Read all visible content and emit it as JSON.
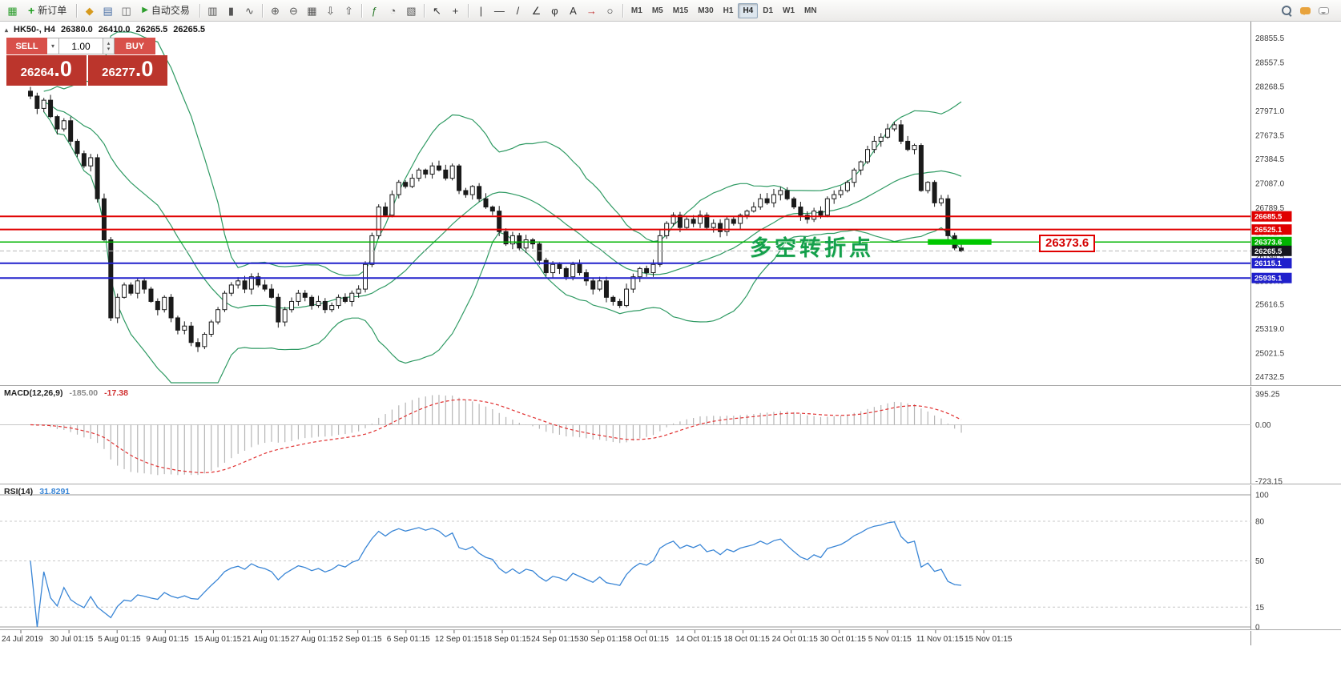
{
  "toolbar": {
    "app_icon": {
      "glyph": "▦"
    },
    "new_order": {
      "label": "新订单",
      "icon_glyph": "+"
    },
    "autotrade": {
      "label": "自动交易",
      "icon_glyph": "▶"
    },
    "icon_groups": [
      [
        {
          "name": "gold-icon",
          "glyph": "◆",
          "color": "#d69a1e"
        },
        {
          "name": "market-watch-icon",
          "glyph": "▤",
          "color": "#4a6fa5"
        },
        {
          "name": "data-window-icon",
          "glyph": "◫",
          "color": "#666666"
        }
      ],
      [
        {
          "name": "bar-chart-icon",
          "glyph": "▥",
          "color": "#555555"
        },
        {
          "name": "candlestick-chart-icon",
          "glyph": "▮",
          "color": "#555555"
        },
        {
          "name": "line-chart-icon",
          "glyph": "∿",
          "color": "#555555"
        }
      ],
      [
        {
          "name": "zoom-in-icon",
          "glyph": "⊕",
          "color": "#555555"
        },
        {
          "name": "zoom-out-icon",
          "glyph": "⊖",
          "color": "#555555"
        },
        {
          "name": "tile-windows-icon",
          "glyph": "▦",
          "color": "#555555"
        },
        {
          "name": "arrange-down-icon",
          "glyph": "⇩",
          "color": "#555555"
        },
        {
          "name": "arrange-up-icon",
          "glyph": "⇧",
          "color": "#555555"
        }
      ],
      [
        {
          "name": "indicators-icon",
          "glyph": "ƒ",
          "color": "#2c7a2c"
        },
        {
          "name": "periods-icon",
          "glyph": "◔",
          "color": "#555555"
        },
        {
          "name": "templates-icon",
          "glyph": "▧",
          "color": "#555555"
        }
      ],
      [
        {
          "name": "cursor-icon",
          "glyph": "↖",
          "color": "#333333"
        },
        {
          "name": "crosshair-icon",
          "glyph": "+",
          "color": "#333333"
        }
      ],
      [
        {
          "name": "vertical-line-icon",
          "glyph": "|",
          "color": "#333333"
        },
        {
          "name": "horizontal-line-icon",
          "glyph": "—",
          "color": "#333333"
        },
        {
          "name": "trendline-icon",
          "glyph": "/",
          "color": "#333333"
        },
        {
          "name": "channel-icon",
          "glyph": "∠",
          "color": "#333333"
        },
        {
          "name": "fibonacci-icon",
          "glyph": "φ",
          "color": "#333333"
        },
        {
          "name": "text-icon",
          "glyph": "A",
          "color": "#333333"
        },
        {
          "name": "arrows-icon",
          "glyph": "→",
          "color": "#c23030"
        },
        {
          "name": "shapes-icon",
          "glyph": "○",
          "color": "#333333"
        }
      ]
    ],
    "timeframes": [
      "M1",
      "M5",
      "M15",
      "M30",
      "H1",
      "H4",
      "D1",
      "W1",
      "MN"
    ],
    "active_timeframe": "H4"
  },
  "symbol_info": {
    "marker": "▴",
    "title": "HK50-, H4",
    "open": "26380.0",
    "high": "26410.0",
    "low": "26265.5",
    "close": "26265.5"
  },
  "trade_panel": {
    "sell_label": "SELL",
    "buy_label": "BUY",
    "volume": "1.00",
    "caret": "▾",
    "spin_up": "▴",
    "spin_down": "▾",
    "sell_price_main": "26264",
    "sell_price_frac": ".0",
    "buy_price_main": "26277",
    "buy_price_frac": ".0"
  },
  "annotation": {
    "text": "多空转折点",
    "color": "#14a04b"
  },
  "price_label_box": {
    "text": "26373.6",
    "color": "#e00000"
  },
  "chart_data": {
    "type": "candlestick",
    "symbol": "HK50",
    "timeframe": "H4",
    "price_pane": {
      "ylim": [
        24660,
        28930
      ],
      "axis_labels": [
        "28855.5",
        "28557.5",
        "28268.5",
        "27971.0",
        "27673.5",
        "27384.5",
        "27087.0",
        "26789.5",
        "26492.0",
        "26194.5",
        "25897.0",
        "25616.5",
        "25319.0",
        "25021.5",
        "24732.5"
      ],
      "hlines": [
        {
          "price": 26685.5,
          "label": "26685.5",
          "color": "#e00000",
          "width": 2
        },
        {
          "price": 26525.1,
          "label": "26525.1",
          "color": "#e00000",
          "width": 2
        },
        {
          "price": 26373.6,
          "label": "26373.6",
          "color": "#00b400",
          "width": 1.5
        },
        {
          "price": 26115.1,
          "label": "26115.1",
          "color": "#2020cc",
          "width": 2
        },
        {
          "price": 25935.1,
          "label": "25935.1",
          "color": "#2020cc",
          "width": 2
        }
      ],
      "current_price": {
        "price": 26265.5,
        "label": "26265.5",
        "tag_color": "#16161f",
        "line_color": "#b8b8b8"
      },
      "highlight_segment": {
        "price": 26373.6,
        "from_bar": 134,
        "to_bar": 143.5,
        "color": "#00c800",
        "thickness": 7
      },
      "style": {
        "bull": "#ffffff",
        "bear": "#1a1a1a",
        "wick": "#1a1a1a",
        "bollinger": "#2f9a63",
        "bg": "#ffffff"
      },
      "bollinger": {
        "period": 20,
        "deviation": 2
      },
      "closes": [
        28150,
        28000,
        28100,
        27900,
        27750,
        27850,
        27600,
        27450,
        27300,
        27400,
        26900,
        26400,
        25450,
        25700,
        25850,
        25750,
        25900,
        25800,
        25650,
        25550,
        25700,
        25450,
        25300,
        25350,
        25150,
        25100,
        25250,
        25400,
        25550,
        25750,
        25850,
        25900,
        25800,
        25950,
        25850,
        25800,
        25700,
        25400,
        25550,
        25650,
        25750,
        25700,
        25600,
        25650,
        25550,
        25600,
        25700,
        25650,
        25750,
        25800,
        26100,
        26450,
        26800,
        26700,
        26950,
        27100,
        27050,
        27150,
        27250,
        27200,
        27300,
        27250,
        27150,
        27300,
        27000,
        26950,
        27050,
        26900,
        26800,
        26750,
        26500,
        26350,
        26450,
        26300,
        26400,
        26350,
        26150,
        26000,
        26100,
        26050,
        25950,
        26100,
        26000,
        25900,
        25800,
        25900,
        25700,
        25650,
        25600,
        25800,
        25950,
        26050,
        26000,
        26100,
        26450,
        26600,
        26700,
        26550,
        26650,
        26600,
        26700,
        26550,
        26600,
        26500,
        26650,
        26600,
        26700,
        26750,
        26800,
        26900,
        26850,
        26950,
        27000,
        26900,
        26800,
        26700,
        26650,
        26750,
        26700,
        26900,
        26950,
        27000,
        27100,
        27250,
        27350,
        27500,
        27600,
        27650,
        27750,
        27800,
        27600,
        27500,
        27550,
        27000,
        27100,
        26850,
        26900,
        26450,
        26300,
        26265
      ]
    },
    "macd_pane": {
      "label": "MACD(12,26,9)",
      "value_main": "-185.00",
      "value_signal": "-17.38",
      "params": {
        "fast": 12,
        "slow": 26,
        "signal": 9
      },
      "ylim": [
        -723.15,
        395.25
      ],
      "axis_labels": [
        "395.25",
        "0.00",
        "-723.15"
      ],
      "histogram_color": "#b5b5b5",
      "signal_color": "#e03030"
    },
    "rsi_pane": {
      "label": "RSI(14)",
      "value": "31.8291",
      "period": 14,
      "ylim": [
        0,
        100
      ],
      "levels": [
        80,
        50,
        15
      ],
      "axis_labels": [
        "100",
        "80",
        "50",
        "15",
        "0"
      ],
      "line_color": "#3a86d6"
    },
    "x_axis": {
      "labels": [
        "24 Jul 2019",
        "30 Jul 01:15",
        "5 Aug 01:15",
        "9 Aug 01:15",
        "15 Aug 01:15",
        "21 Aug 01:15",
        "27 Aug 01:15",
        "2 Sep 01:15",
        "6 Sep 01:15",
        "12 Sep 01:15",
        "18 Sep 01:15",
        "24 Sep 01:15",
        "30 Sep 01:15",
        "8 Oct 01:15",
        "14 Oct 01:15",
        "18 Oct 01:15",
        "24 Oct 01:15",
        "30 Oct 01:15",
        "5 Nov 01:15",
        "11 Nov 01:15",
        "15 Nov 01:15"
      ]
    }
  }
}
